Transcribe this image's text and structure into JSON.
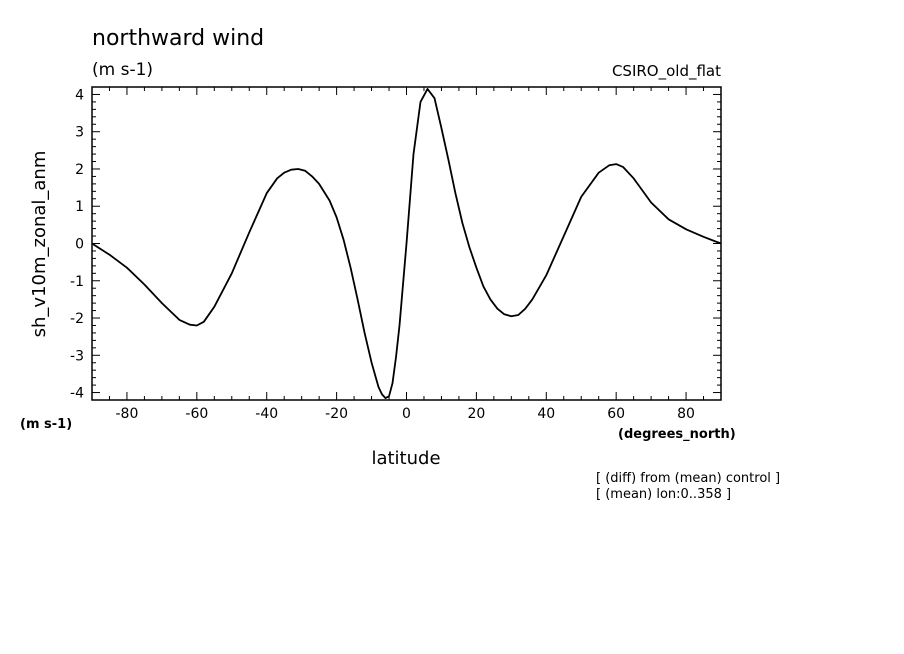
{
  "chart_data": {
    "type": "line",
    "title": "northward wind",
    "units": "(m s-1)",
    "model": "CSIRO_old_flat",
    "ylabel": "sh_v10m_zonal_anm",
    "yunits": "(m s-1)",
    "xlabel": "latitude",
    "xunits": "(degrees_north)",
    "notes": [
      "[ (diff) from (mean) control ]",
      "[ (mean) lon:0..358 ]"
    ],
    "xlim": [
      -90,
      90
    ],
    "ylim": [
      -4.2,
      4.2
    ],
    "xticks": [
      -80,
      -60,
      -40,
      -20,
      0,
      20,
      40,
      60,
      80
    ],
    "xtick_labels": [
      "-80",
      "-60",
      "-40",
      "-20",
      "0",
      "20",
      "40",
      "60",
      "80"
    ],
    "yticks": [
      -4,
      -3,
      -2,
      -1,
      0,
      1,
      2,
      3,
      4
    ],
    "ytick_labels": [
      "-4",
      "-3",
      "-2",
      "-1",
      "0",
      "1",
      "2",
      "3",
      "4"
    ],
    "grid": false,
    "series": [
      {
        "x": [
          -90,
          -85,
          -80,
          -75,
          -70,
          -65,
          -62,
          -60,
          -58,
          -55,
          -50,
          -45,
          -40,
          -37,
          -35,
          -33,
          -31,
          -29,
          -27,
          -25,
          -22,
          -20,
          -18,
          -16,
          -14,
          -12,
          -10,
          -8,
          -7,
          -6,
          -5,
          -4,
          -3,
          -2,
          -1,
          0,
          2,
          4,
          6,
          8,
          10,
          12,
          14,
          16,
          18,
          20,
          22,
          24,
          26,
          28,
          30,
          32,
          34,
          36,
          40,
          45,
          50,
          55,
          58,
          60,
          62,
          65,
          70,
          75,
          80,
          85,
          88,
          90
        ],
        "y": [
          0.0,
          -0.3,
          -0.65,
          -1.1,
          -1.6,
          -2.05,
          -2.18,
          -2.2,
          -2.1,
          -1.7,
          -0.8,
          0.3,
          1.35,
          1.75,
          1.9,
          1.98,
          2.0,
          1.95,
          1.8,
          1.6,
          1.15,
          0.7,
          0.1,
          -0.65,
          -1.5,
          -2.4,
          -3.2,
          -3.85,
          -4.05,
          -4.15,
          -4.1,
          -3.75,
          -3.05,
          -2.2,
          -1.1,
          0.0,
          2.4,
          3.8,
          4.15,
          3.9,
          3.1,
          2.25,
          1.35,
          0.55,
          -0.1,
          -0.65,
          -1.15,
          -1.5,
          -1.75,
          -1.9,
          -1.95,
          -1.92,
          -1.75,
          -1.5,
          -0.85,
          0.2,
          1.25,
          1.9,
          2.1,
          2.13,
          2.05,
          1.75,
          1.1,
          0.65,
          0.38,
          0.18,
          0.07,
          0.0
        ]
      }
    ]
  }
}
